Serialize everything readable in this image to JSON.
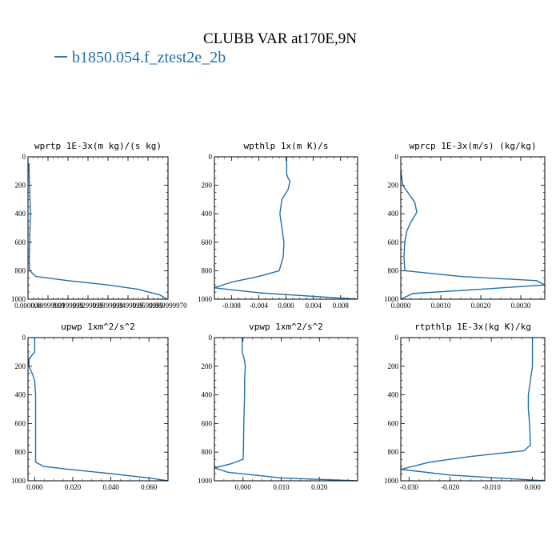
{
  "figure": {
    "title": "CLUBB VAR at170E,9N",
    "legend": [
      {
        "label": "b1850.054.f_ztest2e_2b",
        "color": "#1f6fad"
      }
    ]
  },
  "chart_data": [
    {
      "type": "line",
      "title": "wprtp  1E-3x(m kg)/(s kg)",
      "xlim": [
        0.0,
        0.07
      ],
      "ylim": [
        1000,
        0
      ],
      "y_inverted": true,
      "xtick_labels": [
        "0.000000",
        "0.00999999",
        "0.0199999",
        "0.0299999",
        "0.0399999",
        "0.0499999",
        "0.0599999",
        "0.069999970"
      ],
      "xtick_values": [
        0.0,
        0.01,
        0.02,
        0.03,
        0.04,
        0.05,
        0.06,
        0.07
      ],
      "yticks": [
        0,
        200,
        400,
        600,
        800,
        1000
      ],
      "series": [
        {
          "color": "#1f6fad",
          "x": [
            0.0005,
            0.0006,
            0.001,
            0.0012,
            0.001,
            0.0008,
            0.0006,
            0.0008,
            0.004,
            0.02,
            0.04,
            0.055,
            0.066,
            0.0695
          ],
          "y": [
            50,
            150,
            300,
            400,
            500,
            600,
            700,
            800,
            840,
            870,
            900,
            930,
            970,
            1000
          ]
        }
      ]
    },
    {
      "type": "line",
      "title": "wpthlp  1x(m K)/s",
      "xlim": [
        -0.0105,
        0.0105
      ],
      "ylim": [
        1000,
        0
      ],
      "y_inverted": true,
      "xtick_labels": [
        "-0.008",
        "-0.004",
        "0.000",
        "0.004",
        "0.008"
      ],
      "xtick_values": [
        -0.008,
        -0.004,
        0.0,
        0.004,
        0.008
      ],
      "yticks": [
        0,
        200,
        400,
        600,
        800,
        1000
      ],
      "series": [
        {
          "color": "#1f6fad",
          "x": [
            0.0001,
            0.0001,
            0.0003,
            0.0006,
            0.0003,
            -0.0006,
            -0.0009,
            -0.0006,
            -0.0003,
            -0.0004,
            -0.001,
            -0.004,
            -0.008,
            -0.0105,
            -0.004,
            0.004,
            0.0105
          ],
          "y": [
            0,
            120,
            150,
            170,
            230,
            300,
            400,
            500,
            600,
            700,
            800,
            840,
            880,
            920,
            955,
            980,
            1000
          ]
        }
      ]
    },
    {
      "type": "line",
      "title": "wprcp  1E-3x(m/s) (kg/kg)",
      "xlim": [
        0.0,
        0.0036
      ],
      "ylim": [
        1000,
        0
      ],
      "y_inverted": true,
      "xtick_labels": [
        "0.0000",
        "0.0010",
        "0.0020",
        "0.0030"
      ],
      "xtick_values": [
        0.0,
        0.001,
        0.002,
        0.003
      ],
      "yticks": [
        0,
        200,
        400,
        600,
        800,
        1000
      ],
      "series": [
        {
          "color": "#1f6fad",
          "x": [
            0.0,
            5e-05,
            0.0002,
            0.00035,
            0.0004,
            0.00025,
            0.00015,
            0.0001,
            8e-05,
            0.0001,
            0.0015,
            0.0034,
            0.0036,
            0.002,
            0.0003,
            0.0
          ],
          "y": [
            100,
            200,
            260,
            320,
            390,
            460,
            520,
            600,
            700,
            800,
            840,
            870,
            900,
            930,
            960,
            1000
          ]
        }
      ]
    },
    {
      "type": "line",
      "title": "upwp  1xm^2/s^2",
      "xlim": [
        -0.0035,
        0.07
      ],
      "ylim": [
        1000,
        0
      ],
      "y_inverted": true,
      "xtick_labels": [
        "0.000",
        "0.020",
        "0.040",
        "0.060"
      ],
      "xtick_values": [
        0.0,
        0.02,
        0.04,
        0.06
      ],
      "yticks": [
        0,
        200,
        400,
        600,
        800,
        1000
      ],
      "series": [
        {
          "color": "#1f6fad",
          "x": [
            0.0,
            0.0,
            -0.003,
            -0.003,
            -0.001,
            0.0,
            0.0005,
            0.0005,
            0.0005,
            0.0005,
            0.005,
            0.018,
            0.04,
            0.06,
            0.07
          ],
          "y": [
            0,
            100,
            150,
            200,
            260,
            300,
            400,
            600,
            800,
            870,
            900,
            920,
            950,
            980,
            1000
          ]
        }
      ]
    },
    {
      "type": "line",
      "title": "vpwp  1xm^2/s^2",
      "xlim": [
        -0.0075,
        0.03
      ],
      "ylim": [
        1000,
        0
      ],
      "y_inverted": true,
      "xtick_labels": [
        "0.000",
        "0.010",
        "0.020"
      ],
      "xtick_values": [
        0.0,
        0.01,
        0.02
      ],
      "yticks": [
        0,
        200,
        400,
        600,
        800,
        1000
      ],
      "series": [
        {
          "color": "#1f6fad",
          "x": [
            -0.0002,
            -0.0002,
            0.0003,
            0.0006,
            0.0004,
            0.0004,
            0.0002,
            0.0001,
            0.0,
            -0.003,
            -0.0075,
            -0.004,
            0.01,
            0.03
          ],
          "y": [
            0,
            100,
            150,
            200,
            300,
            400,
            600,
            800,
            850,
            880,
            910,
            940,
            980,
            1000
          ]
        }
      ]
    },
    {
      "type": "line",
      "title": "rtpthlp  1E-3x(kg K)/kg",
      "xlim": [
        -0.032,
        0.003
      ],
      "ylim": [
        1000,
        0
      ],
      "y_inverted": true,
      "xtick_labels": [
        "-0.030",
        "-0.020",
        "-0.010",
        "0.000"
      ],
      "xtick_values": [
        -0.03,
        -0.02,
        -0.01,
        0.0
      ],
      "yticks": [
        0,
        200,
        400,
        600,
        800,
        1000
      ],
      "series": [
        {
          "color": "#1f6fad",
          "x": [
            0.0,
            0.0,
            -0.0005,
            -0.001,
            -0.001,
            -0.0007,
            -0.0005,
            -0.002,
            -0.015,
            -0.025,
            -0.032,
            -0.02,
            0.003
          ],
          "y": [
            0,
            200,
            300,
            400,
            500,
            600,
            750,
            790,
            830,
            870,
            920,
            960,
            1000
          ]
        }
      ]
    }
  ]
}
